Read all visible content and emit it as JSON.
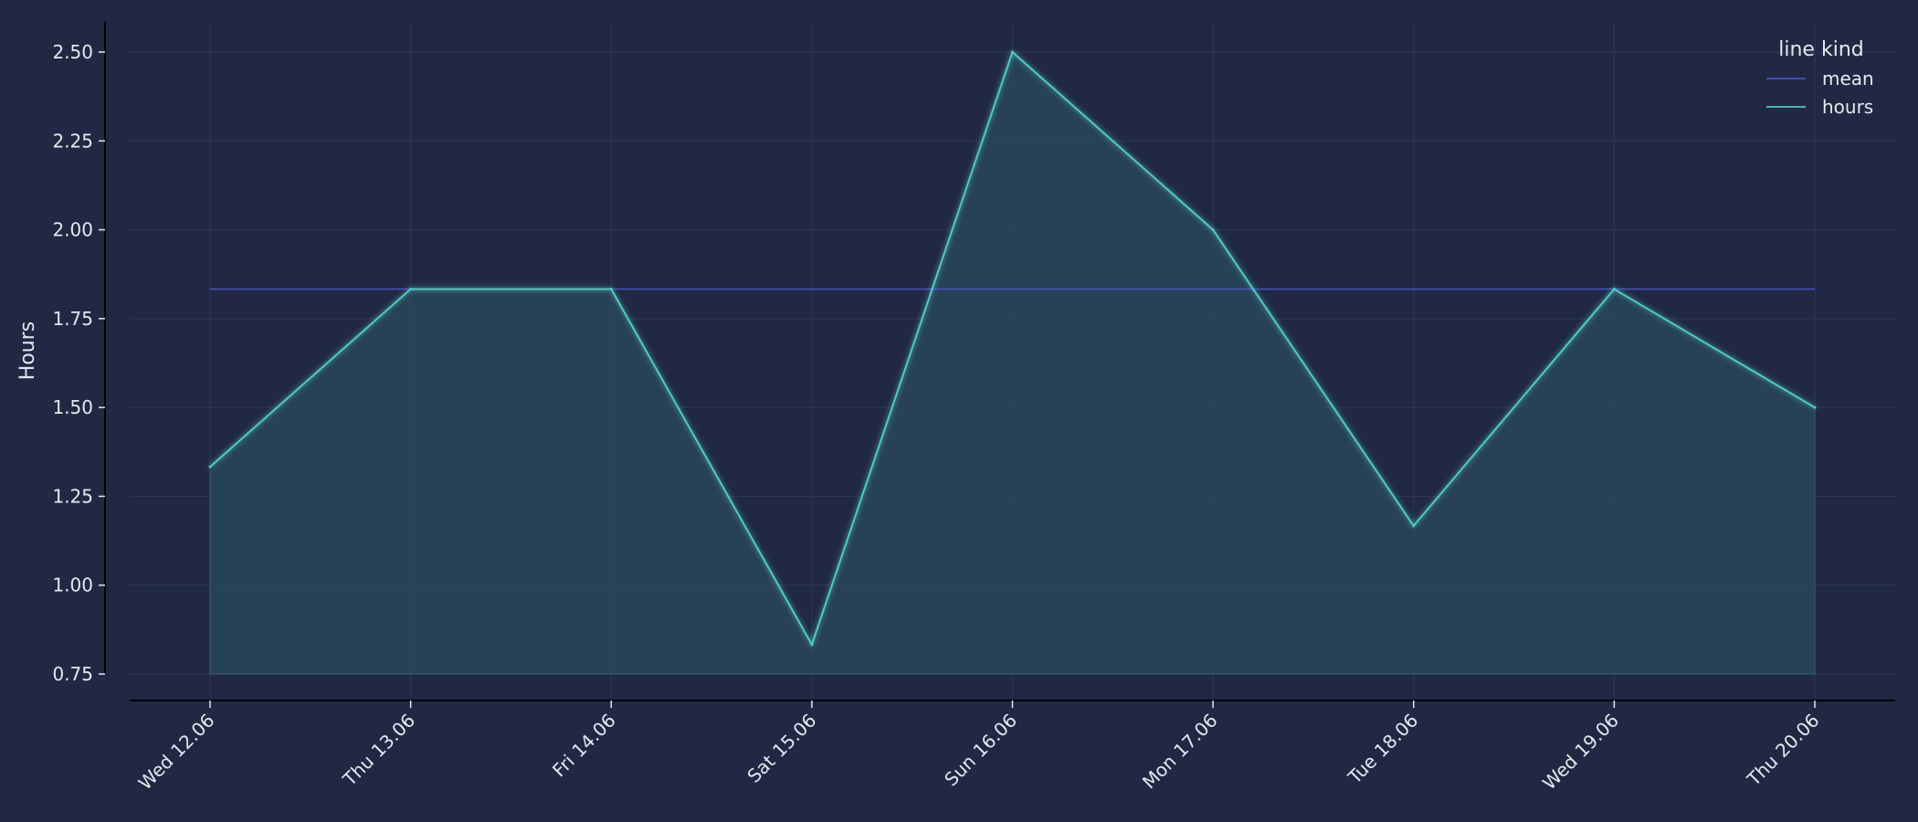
{
  "colors": {
    "background": "#212844",
    "grid": "#2c3555",
    "axis": "#000000",
    "text": "#e6e8ee",
    "hours_line": "#4fc9c3",
    "hours_fill": "#2a4a5e",
    "mean_line": "#4a52c6"
  },
  "chart_data": {
    "type": "line",
    "x": [
      "Wed 12.06",
      "Thu 13.06",
      "Fri 14.06",
      "Sat 15.06",
      "Sun 16.06",
      "Mon 17.06",
      "Tue 18.06",
      "Wed 19.06",
      "Thu 20.06"
    ],
    "series": [
      {
        "name": "mean",
        "values": [
          1.833,
          1.833,
          1.833,
          1.833,
          1.833,
          1.833,
          1.833,
          1.833,
          1.833
        ]
      },
      {
        "name": "hours",
        "values": [
          1.333,
          1.833,
          1.833,
          0.833,
          2.5,
          2.0,
          1.167,
          1.833,
          1.5
        ],
        "fill_to": 0.75
      }
    ],
    "ylabel": "Hours",
    "ylim": [
      0.75,
      2.5
    ],
    "yticks": [
      "0.75",
      "1.00",
      "1.25",
      "1.50",
      "1.75",
      "2.00",
      "2.25",
      "2.50"
    ],
    "legend_title": "line kind",
    "legend_position": "top-right",
    "grid": true
  }
}
